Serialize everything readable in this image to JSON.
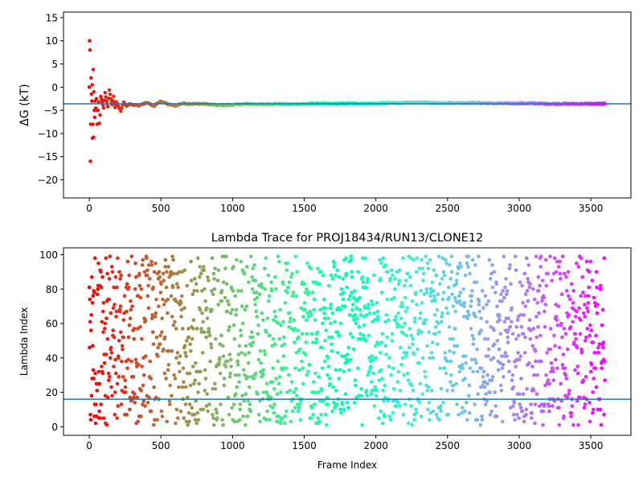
{
  "chart_data": [
    {
      "type": "scatter",
      "title": "",
      "xlabel": "",
      "ylabel": "ΔG (kT)",
      "xlim": [
        -180,
        3780
      ],
      "ylim": [
        -23.9,
        16.2
      ],
      "xticks": [
        0,
        500,
        1000,
        1500,
        2000,
        2500,
        3000,
        3500
      ],
      "yticks": [
        -20,
        -15,
        -10,
        -5,
        0,
        5,
        10,
        15
      ],
      "xtick_labels": [
        "0",
        "500",
        "1000",
        "1500",
        "2000",
        "2500",
        "3000",
        "3500"
      ],
      "ytick_labels": [
        "−20",
        "−15",
        "−10",
        "−5",
        "0",
        "5",
        "10",
        "15"
      ],
      "grid": false,
      "colormap": "rainbow (red at start → purple at end)",
      "reference_line": {
        "y": -3.6,
        "color": "#1f77b4"
      },
      "points_x": [
        0,
        2,
        5,
        8,
        10,
        12,
        15,
        18,
        20,
        22,
        25,
        28,
        30,
        32,
        35,
        38,
        40,
        45,
        50,
        55,
        60,
        65,
        70,
        75,
        80,
        90,
        100,
        110,
        120,
        130,
        140,
        150,
        160,
        170,
        180,
        190,
        200,
        220,
        240,
        260,
        280,
        300,
        350,
        400,
        450,
        500,
        550,
        600,
        650,
        700,
        800,
        900,
        1000,
        1100,
        1200,
        1300,
        1400,
        1500,
        1600,
        1700,
        1800,
        1900,
        2000,
        2100,
        2200,
        2300,
        2400,
        2500,
        2600,
        2700,
        2800,
        2900,
        3000,
        3100,
        3200,
        3300,
        3400,
        3500,
        3600
      ],
      "points_y": [
        0,
        10,
        8,
        -16,
        -8,
        2,
        -1.5,
        -3,
        0.5,
        -11,
        -8,
        3.8,
        -10.8,
        -1,
        -5,
        -6.5,
        -3,
        -4.5,
        -2.5,
        -8,
        -5,
        -3.2,
        -7.8,
        -6,
        -2,
        -3.2,
        -4.5,
        -1.2,
        -3,
        -4.2,
        -0.6,
        -2.5,
        -3.8,
        -2,
        -4.4,
        -3.2,
        -3.9,
        -5.2,
        -3.2,
        -4.1,
        -3.6,
        -3.8,
        -4,
        -3.3,
        -4.1,
        -3,
        -3.7,
        -4,
        -3.5,
        -3.6,
        -3.6,
        -3.9,
        -3.8,
        -3.6,
        -3.7,
        -3.6,
        -3.7,
        -3.6,
        -3.5,
        -3.6,
        -3.5,
        -3.5,
        -3.5,
        -3.4,
        -3.4,
        -3.3,
        -3.4,
        -3.4,
        -3.4,
        -3.4,
        -3.5,
        -3.5,
        -3.5,
        -3.5,
        -3.6,
        -3.6,
        -3.6,
        -3.6,
        -3.6
      ]
    },
    {
      "type": "scatter",
      "title": "Lambda Trace for PROJ18434/RUN13/CLONE12",
      "xlabel": "Frame Index",
      "ylabel": "Lambda Index",
      "xlim": [
        -180,
        3780
      ],
      "ylim": [
        -5,
        104
      ],
      "xticks": [
        0,
        500,
        1000,
        1500,
        2000,
        2500,
        3000,
        3500
      ],
      "yticks": [
        0,
        20,
        40,
        60,
        80,
        100
      ],
      "xtick_labels": [
        "0",
        "500",
        "1000",
        "1500",
        "2000",
        "2500",
        "3000",
        "3500"
      ],
      "ytick_labels": [
        "0",
        "20",
        "40",
        "60",
        "80",
        "100"
      ],
      "grid": false,
      "colormap": "rainbow (red at start → purple at end)",
      "reference_line": {
        "y": 16,
        "color": "#1f77b4"
      },
      "n_frames": 3600,
      "lambda_range": [
        1,
        99
      ],
      "point_stride": 2
    }
  ]
}
